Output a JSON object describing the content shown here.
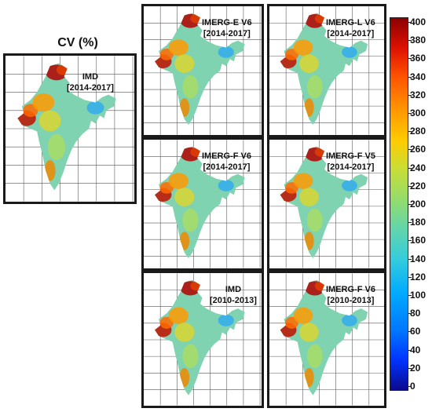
{
  "title": "CV (%)",
  "panels": [
    {
      "label_line1": "IMD",
      "label_line2": "[2014-2017]"
    },
    {
      "label_line1": "IMERG-E V6",
      "label_line2": "[2014-2017]"
    },
    {
      "label_line1": "IMERG-L V6",
      "label_line2": "[2014-2017]"
    },
    {
      "label_line1": "IMERG-F V6",
      "label_line2": "[2014-2017]"
    },
    {
      "label_line1": "IMERG-F V5",
      "label_line2": "[2014-2017]"
    },
    {
      "label_line1": "IMD",
      "label_line2": "[2010-2013]"
    },
    {
      "label_line1": "IMERG-F V6",
      "label_line2": "[2010-2013]"
    }
  ],
  "colorbar": {
    "min": 0,
    "max": 400,
    "ticks": [
      "400",
      "380",
      "360",
      "340",
      "320",
      "300",
      "280",
      "260",
      "240",
      "220",
      "200",
      "180",
      "160",
      "140",
      "120",
      "100",
      "80",
      "60",
      "40",
      "20",
      "0"
    ],
    "colors": [
      "#0a0a8c",
      "#0077ff",
      "#33ccdd",
      "#99dd66",
      "#ffcc00",
      "#ff5500",
      "#8b0000"
    ]
  }
}
